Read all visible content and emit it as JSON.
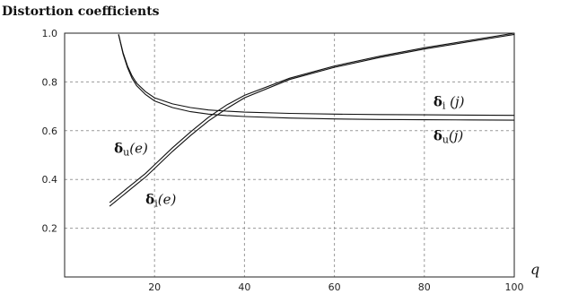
{
  "chart_data": {
    "type": "line",
    "title": "Distortion coefficients",
    "xlabel": "q",
    "ylabel": "",
    "xlim": [
      0,
      100
    ],
    "ylim": [
      0,
      1.0
    ],
    "grid": true,
    "xticks": [
      "20",
      "40",
      "60",
      "80",
      "100"
    ],
    "yticks": [
      "0.2",
      "0.4",
      "0.6",
      "0.8",
      "1.0"
    ],
    "series": [
      {
        "name": "δu(e)",
        "x": [
          10,
          12,
          14,
          16,
          18,
          20,
          24,
          28,
          32,
          36,
          40,
          50,
          60,
          70,
          80,
          90,
          100
        ],
        "y": [
          0.305,
          0.335,
          0.365,
          0.395,
          0.425,
          0.46,
          0.53,
          0.595,
          0.655,
          0.705,
          0.745,
          0.815,
          0.865,
          0.905,
          0.94,
          0.97,
          1.0
        ]
      },
      {
        "name": "δi(e)",
        "x": [
          10,
          12,
          14,
          16,
          18,
          20,
          24,
          28,
          32,
          36,
          40,
          50,
          60,
          70,
          80,
          90,
          100
        ],
        "y": [
          0.29,
          0.32,
          0.35,
          0.38,
          0.41,
          0.445,
          0.515,
          0.58,
          0.64,
          0.69,
          0.735,
          0.81,
          0.86,
          0.9,
          0.935,
          0.965,
          0.995
        ]
      },
      {
        "name": "δi(j)",
        "x": [
          12,
          13,
          14,
          15,
          16,
          18,
          20,
          24,
          28,
          32,
          36,
          40,
          50,
          60,
          70,
          80,
          90,
          100
        ],
        "y": [
          0.995,
          0.92,
          0.865,
          0.825,
          0.795,
          0.76,
          0.735,
          0.71,
          0.695,
          0.685,
          0.68,
          0.676,
          0.671,
          0.668,
          0.666,
          0.665,
          0.664,
          0.663
        ]
      },
      {
        "name": "δu(j)",
        "x": [
          12,
          13,
          14,
          15,
          16,
          18,
          20,
          24,
          28,
          32,
          36,
          40,
          50,
          60,
          70,
          80,
          90,
          100
        ],
        "y": [
          0.995,
          0.915,
          0.858,
          0.815,
          0.785,
          0.748,
          0.722,
          0.695,
          0.678,
          0.668,
          0.662,
          0.658,
          0.652,
          0.648,
          0.646,
          0.645,
          0.644,
          0.643
        ]
      }
    ],
    "annotations": [
      {
        "main": "δ",
        "sub": "u",
        "arg": "(e)",
        "x": 11,
        "y": 0.51
      },
      {
        "main": "δ",
        "sub": "i",
        "arg": "(e)",
        "x": 18,
        "y": 0.3
      },
      {
        "main": "δ",
        "sub": "i",
        "arg": " (j)",
        "x": 82,
        "y": 0.7
      },
      {
        "main": "δ",
        "sub": "u",
        "arg": "(j)",
        "x": 82,
        "y": 0.56
      }
    ]
  }
}
